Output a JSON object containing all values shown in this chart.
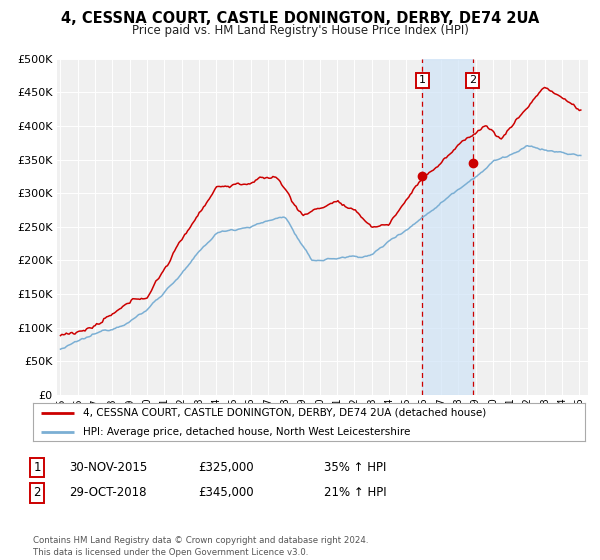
{
  "title": "4, CESSNA COURT, CASTLE DONINGTON, DERBY, DE74 2UA",
  "subtitle": "Price paid vs. HM Land Registry's House Price Index (HPI)",
  "legend_line1": "4, CESSNA COURT, CASTLE DONINGTON, DERBY, DE74 2UA (detached house)",
  "legend_line2": "HPI: Average price, detached house, North West Leicestershire",
  "marker1_date": "30-NOV-2015",
  "marker1_price": "£325,000",
  "marker1_hpi": "35% ↑ HPI",
  "marker1_x": 2015.92,
  "marker1_y": 325000,
  "marker2_date": "29-OCT-2018",
  "marker2_price": "£345,000",
  "marker2_hpi": "21% ↑ HPI",
  "marker2_x": 2018.83,
  "marker2_y": 345000,
  "vline1_x": 2015.92,
  "vline2_x": 2018.83,
  "shade_color": "#d0e4f7",
  "red_color": "#cc0000",
  "blue_color": "#7bafd4",
  "footer": "Contains HM Land Registry data © Crown copyright and database right 2024.\nThis data is licensed under the Open Government Licence v3.0.",
  "ylim": [
    0,
    500000
  ],
  "xlim_start": 1994.8,
  "xlim_end": 2025.5,
  "background_color": "#ffffff",
  "plot_bg_color": "#f0f0f0"
}
